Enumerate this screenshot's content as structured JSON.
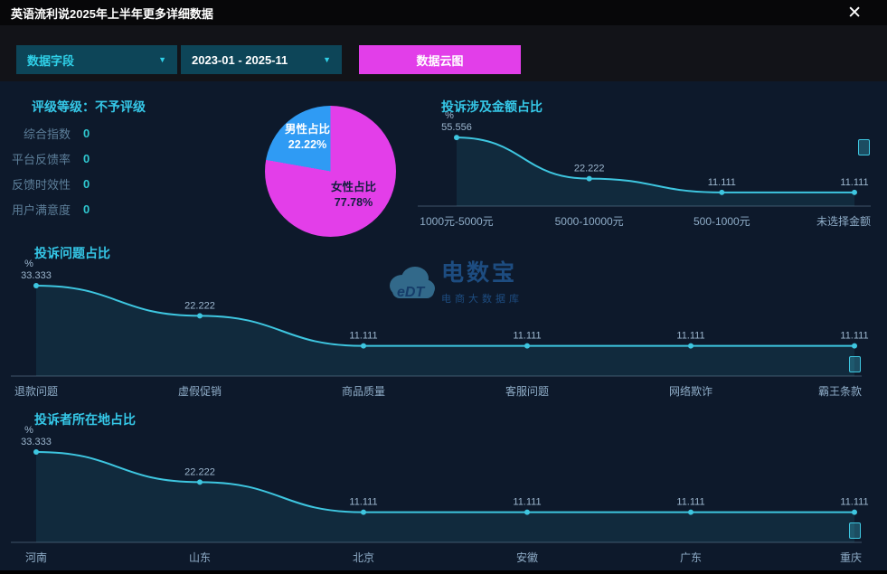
{
  "window": {
    "title": "英语流利说2025年上半年更多详细数据",
    "close_icon": "✕"
  },
  "toolbar": {
    "field_dropdown": {
      "label": "数据字段"
    },
    "date_dropdown": {
      "label": "2023-01 - 2025-11"
    },
    "cloud_button": {
      "label": "数据云图"
    }
  },
  "icons": {
    "chevron_down": "▼"
  },
  "rating_panel": {
    "title": "评级等级：不予评级",
    "rows": [
      {
        "label": "综合指数",
        "value": "0"
      },
      {
        "label": "平台反馈率",
        "value": "0"
      },
      {
        "label": "反馈时效性",
        "value": "0"
      },
      {
        "label": "用户满意度",
        "value": "0"
      }
    ]
  },
  "watermark": {
    "logo": "eDT",
    "name": "电数宝",
    "tagline": "电商大数据库"
  },
  "colors": {
    "background": "#0d192b",
    "titlebar": "#070709",
    "accent_cyan": "#35c8e8",
    "line_cyan": "#3ec6e0",
    "area_fill": "rgba(62,198,224,0.10)",
    "axis": "rgba(125,155,185,0.45)",
    "button_magenta": "#e23ee9",
    "male_blue": "#2f9bf4",
    "female_magenta": "#e33ee9"
  },
  "chart_data": [
    {
      "type": "pie",
      "name": "gender-pie",
      "slices": [
        {
          "label": "男性占比",
          "value": 22.22,
          "display": "22.22%",
          "color": "#2f9bf4"
        },
        {
          "label": "女性占比",
          "value": 77.78,
          "display": "77.78%",
          "color": "#e33ee9"
        }
      ]
    },
    {
      "type": "line",
      "name": "amount",
      "title": "投诉涉及金额占比",
      "ylabel": "%",
      "ymax": 60,
      "legend_position": "none",
      "grid": false,
      "categories": [
        "1000元-5000元",
        "5000-10000元",
        "500-1000元",
        "未选择金额"
      ],
      "values": [
        55.556,
        22.222,
        11.111,
        11.111
      ]
    },
    {
      "type": "line",
      "name": "issues",
      "title": "投诉问题占比",
      "ylabel": "%",
      "ymax": 36,
      "legend_position": "none",
      "grid": false,
      "categories": [
        "退款问题",
        "虚假促销",
        "商品质量",
        "客服问题",
        "网络欺诈",
        "霸王条款"
      ],
      "values": [
        33.333,
        22.222,
        11.111,
        11.111,
        11.111,
        11.111
      ]
    },
    {
      "type": "line",
      "name": "locations",
      "title": "投诉者所在地占比",
      "ylabel": "%",
      "ymax": 36,
      "legend_position": "none",
      "grid": false,
      "categories": [
        "河南",
        "山东",
        "北京",
        "安徽",
        "广东",
        "重庆"
      ],
      "values": [
        33.333,
        22.222,
        11.111,
        11.111,
        11.111,
        11.111
      ]
    }
  ]
}
